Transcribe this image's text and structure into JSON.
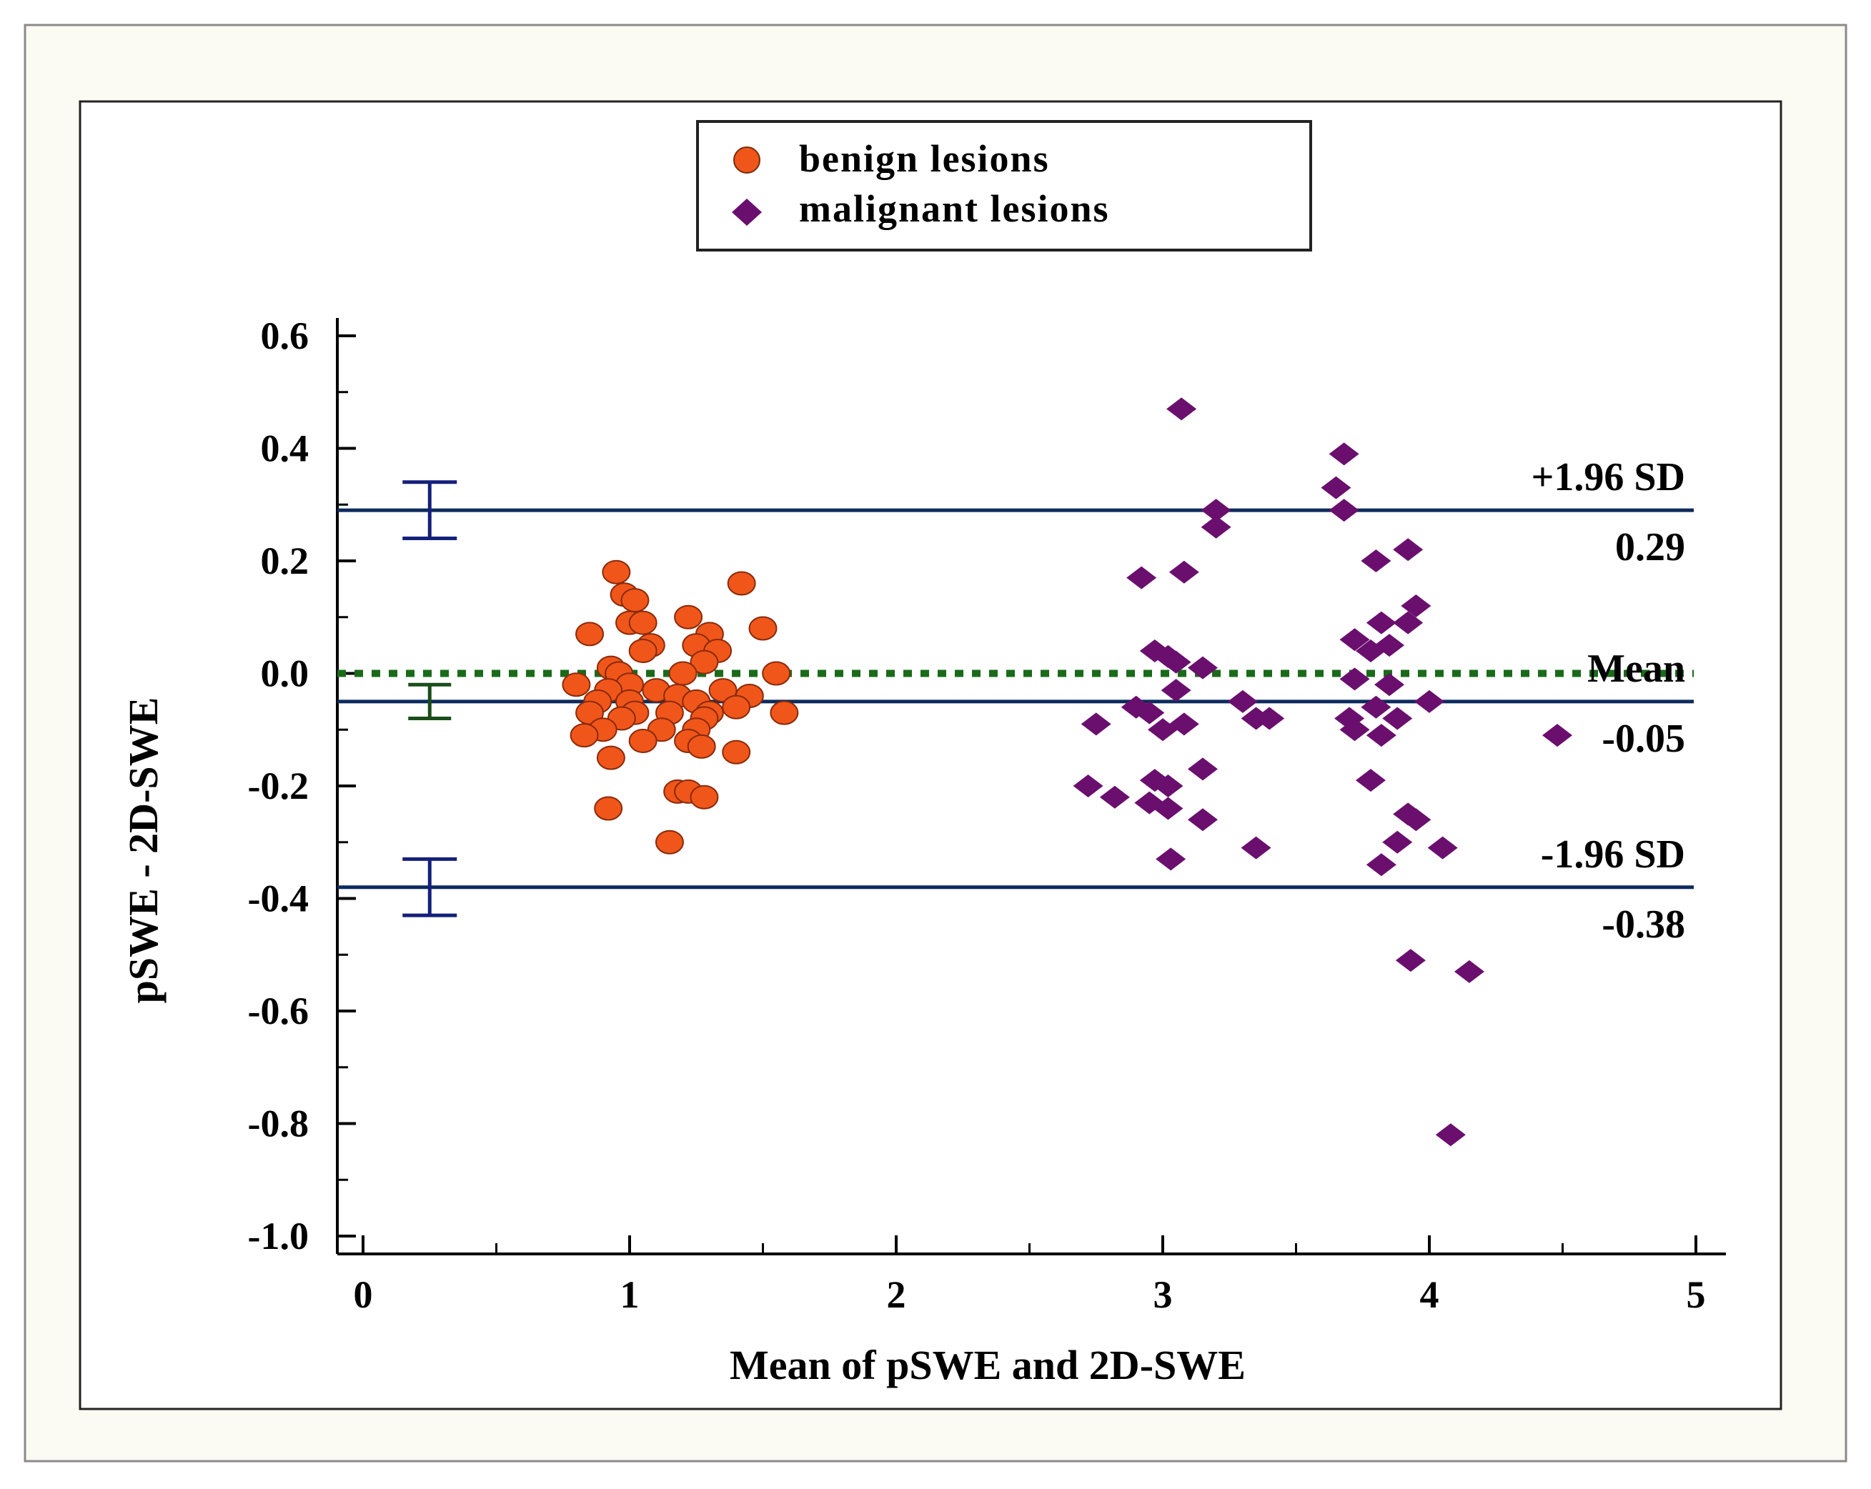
{
  "chart_data": {
    "type": "scatter",
    "xlabel": "Mean of pSWE and 2D-SWE",
    "ylabel": "pSWE - 2D-SWE",
    "xlim": [
      0,
      5
    ],
    "ylim": [
      -1.0,
      0.6
    ],
    "x_ticks": [
      "0",
      "1",
      "2",
      "3",
      "4",
      "5"
    ],
    "y_ticks": [
      "0.6",
      "0.4",
      "0.2",
      "0.0",
      "-0.2",
      "-0.4",
      "-0.6",
      "-0.8",
      "-1.0"
    ],
    "legend": {
      "position": "top-center",
      "entries": [
        "benign lesions",
        "malignant lesions"
      ]
    },
    "reference_lines": {
      "upper": {
        "label": "+1.96 SD",
        "value_label": "0.29",
        "value": 0.29
      },
      "mean": {
        "label": "Mean",
        "value_label": "-0.05",
        "value": -0.05
      },
      "lower": {
        "label": "-1.96 SD",
        "value_label": "-0.38",
        "value": -0.38
      },
      "zero": {
        "value": 0.0,
        "style": "dotted"
      }
    },
    "confidence_intervals": [
      {
        "of": "upper",
        "x": 0.25,
        "low": 0.24,
        "high": 0.34
      },
      {
        "of": "mean",
        "x": 0.25,
        "low": -0.08,
        "high": -0.02
      },
      {
        "of": "lower",
        "x": 0.25,
        "low": -0.43,
        "high": -0.33
      }
    ],
    "colors": {
      "benign": "#f0561a",
      "malignant": "#6a0f6e",
      "limit_lines": "#0d2a5c",
      "zero_line": "#1a6a1a",
      "ci_blue": "#14207a",
      "ci_green": "#1a4d1a",
      "frame_bg": "#fcfbf3"
    },
    "series": [
      {
        "name": "benign lesions",
        "marker": "circle",
        "points": [
          [
            0.95,
            0.18
          ],
          [
            0.98,
            0.14
          ],
          [
            1.02,
            0.13
          ],
          [
            1.42,
            0.16
          ],
          [
            1.22,
            0.1
          ],
          [
            0.85,
            0.07
          ],
          [
            1.0,
            0.09
          ],
          [
            1.05,
            0.09
          ],
          [
            1.3,
            0.07
          ],
          [
            1.5,
            0.08
          ],
          [
            1.08,
            0.05
          ],
          [
            1.25,
            0.05
          ],
          [
            1.33,
            0.04
          ],
          [
            1.05,
            0.04
          ],
          [
            1.28,
            0.02
          ],
          [
            0.93,
            0.01
          ],
          [
            0.96,
            0.0
          ],
          [
            1.55,
            0.0
          ],
          [
            1.2,
            0.0
          ],
          [
            0.8,
            -0.02
          ],
          [
            1.0,
            -0.02
          ],
          [
            1.1,
            -0.03
          ],
          [
            1.35,
            -0.03
          ],
          [
            0.92,
            -0.03
          ],
          [
            1.18,
            -0.04
          ],
          [
            1.45,
            -0.04
          ],
          [
            0.88,
            -0.05
          ],
          [
            1.0,
            -0.05
          ],
          [
            1.25,
            -0.05
          ],
          [
            1.4,
            -0.06
          ],
          [
            0.85,
            -0.07
          ],
          [
            1.02,
            -0.07
          ],
          [
            1.15,
            -0.07
          ],
          [
            1.3,
            -0.07
          ],
          [
            1.58,
            -0.07
          ],
          [
            0.97,
            -0.08
          ],
          [
            1.28,
            -0.08
          ],
          [
            0.9,
            -0.1
          ],
          [
            1.12,
            -0.1
          ],
          [
            1.25,
            -0.1
          ],
          [
            0.83,
            -0.11
          ],
          [
            1.05,
            -0.12
          ],
          [
            1.22,
            -0.12
          ],
          [
            1.27,
            -0.13
          ],
          [
            1.4,
            -0.14
          ],
          [
            0.93,
            -0.15
          ],
          [
            1.18,
            -0.21
          ],
          [
            1.22,
            -0.21
          ],
          [
            1.28,
            -0.22
          ],
          [
            0.92,
            -0.24
          ],
          [
            1.15,
            -0.3
          ]
        ]
      },
      {
        "name": "malignant lesions",
        "marker": "diamond",
        "points": [
          [
            3.07,
            0.47
          ],
          [
            3.68,
            0.39
          ],
          [
            3.65,
            0.33
          ],
          [
            3.2,
            0.29
          ],
          [
            3.68,
            0.29
          ],
          [
            3.2,
            0.26
          ],
          [
            3.8,
            0.2
          ],
          [
            3.92,
            0.22
          ],
          [
            3.08,
            0.18
          ],
          [
            2.92,
            0.17
          ],
          [
            3.95,
            0.12
          ],
          [
            3.92,
            0.09
          ],
          [
            3.82,
            0.09
          ],
          [
            3.72,
            0.06
          ],
          [
            3.85,
            0.05
          ],
          [
            3.78,
            0.04
          ],
          [
            2.97,
            0.04
          ],
          [
            3.02,
            0.03
          ],
          [
            3.05,
            0.02
          ],
          [
            3.15,
            0.01
          ],
          [
            3.72,
            -0.01
          ],
          [
            3.85,
            -0.02
          ],
          [
            3.05,
            -0.03
          ],
          [
            2.9,
            -0.06
          ],
          [
            3.3,
            -0.05
          ],
          [
            3.8,
            -0.06
          ],
          [
            4.0,
            -0.05
          ],
          [
            2.95,
            -0.07
          ],
          [
            3.35,
            -0.08
          ],
          [
            3.4,
            -0.08
          ],
          [
            3.7,
            -0.08
          ],
          [
            3.88,
            -0.08
          ],
          [
            2.75,
            -0.09
          ],
          [
            3.08,
            -0.09
          ],
          [
            3.0,
            -0.1
          ],
          [
            3.72,
            -0.1
          ],
          [
            3.82,
            -0.11
          ],
          [
            4.48,
            -0.11
          ],
          [
            3.15,
            -0.17
          ],
          [
            2.97,
            -0.19
          ],
          [
            3.02,
            -0.2
          ],
          [
            3.78,
            -0.19
          ],
          [
            2.72,
            -0.2
          ],
          [
            2.82,
            -0.22
          ],
          [
            2.95,
            -0.23
          ],
          [
            3.02,
            -0.24
          ],
          [
            3.15,
            -0.26
          ],
          [
            3.92,
            -0.25
          ],
          [
            3.95,
            -0.26
          ],
          [
            3.35,
            -0.31
          ],
          [
            3.88,
            -0.3
          ],
          [
            4.05,
            -0.31
          ],
          [
            3.03,
            -0.33
          ],
          [
            3.82,
            -0.34
          ],
          [
            3.93,
            -0.51
          ],
          [
            4.15,
            -0.53
          ],
          [
            4.08,
            -0.82
          ]
        ]
      }
    ]
  }
}
